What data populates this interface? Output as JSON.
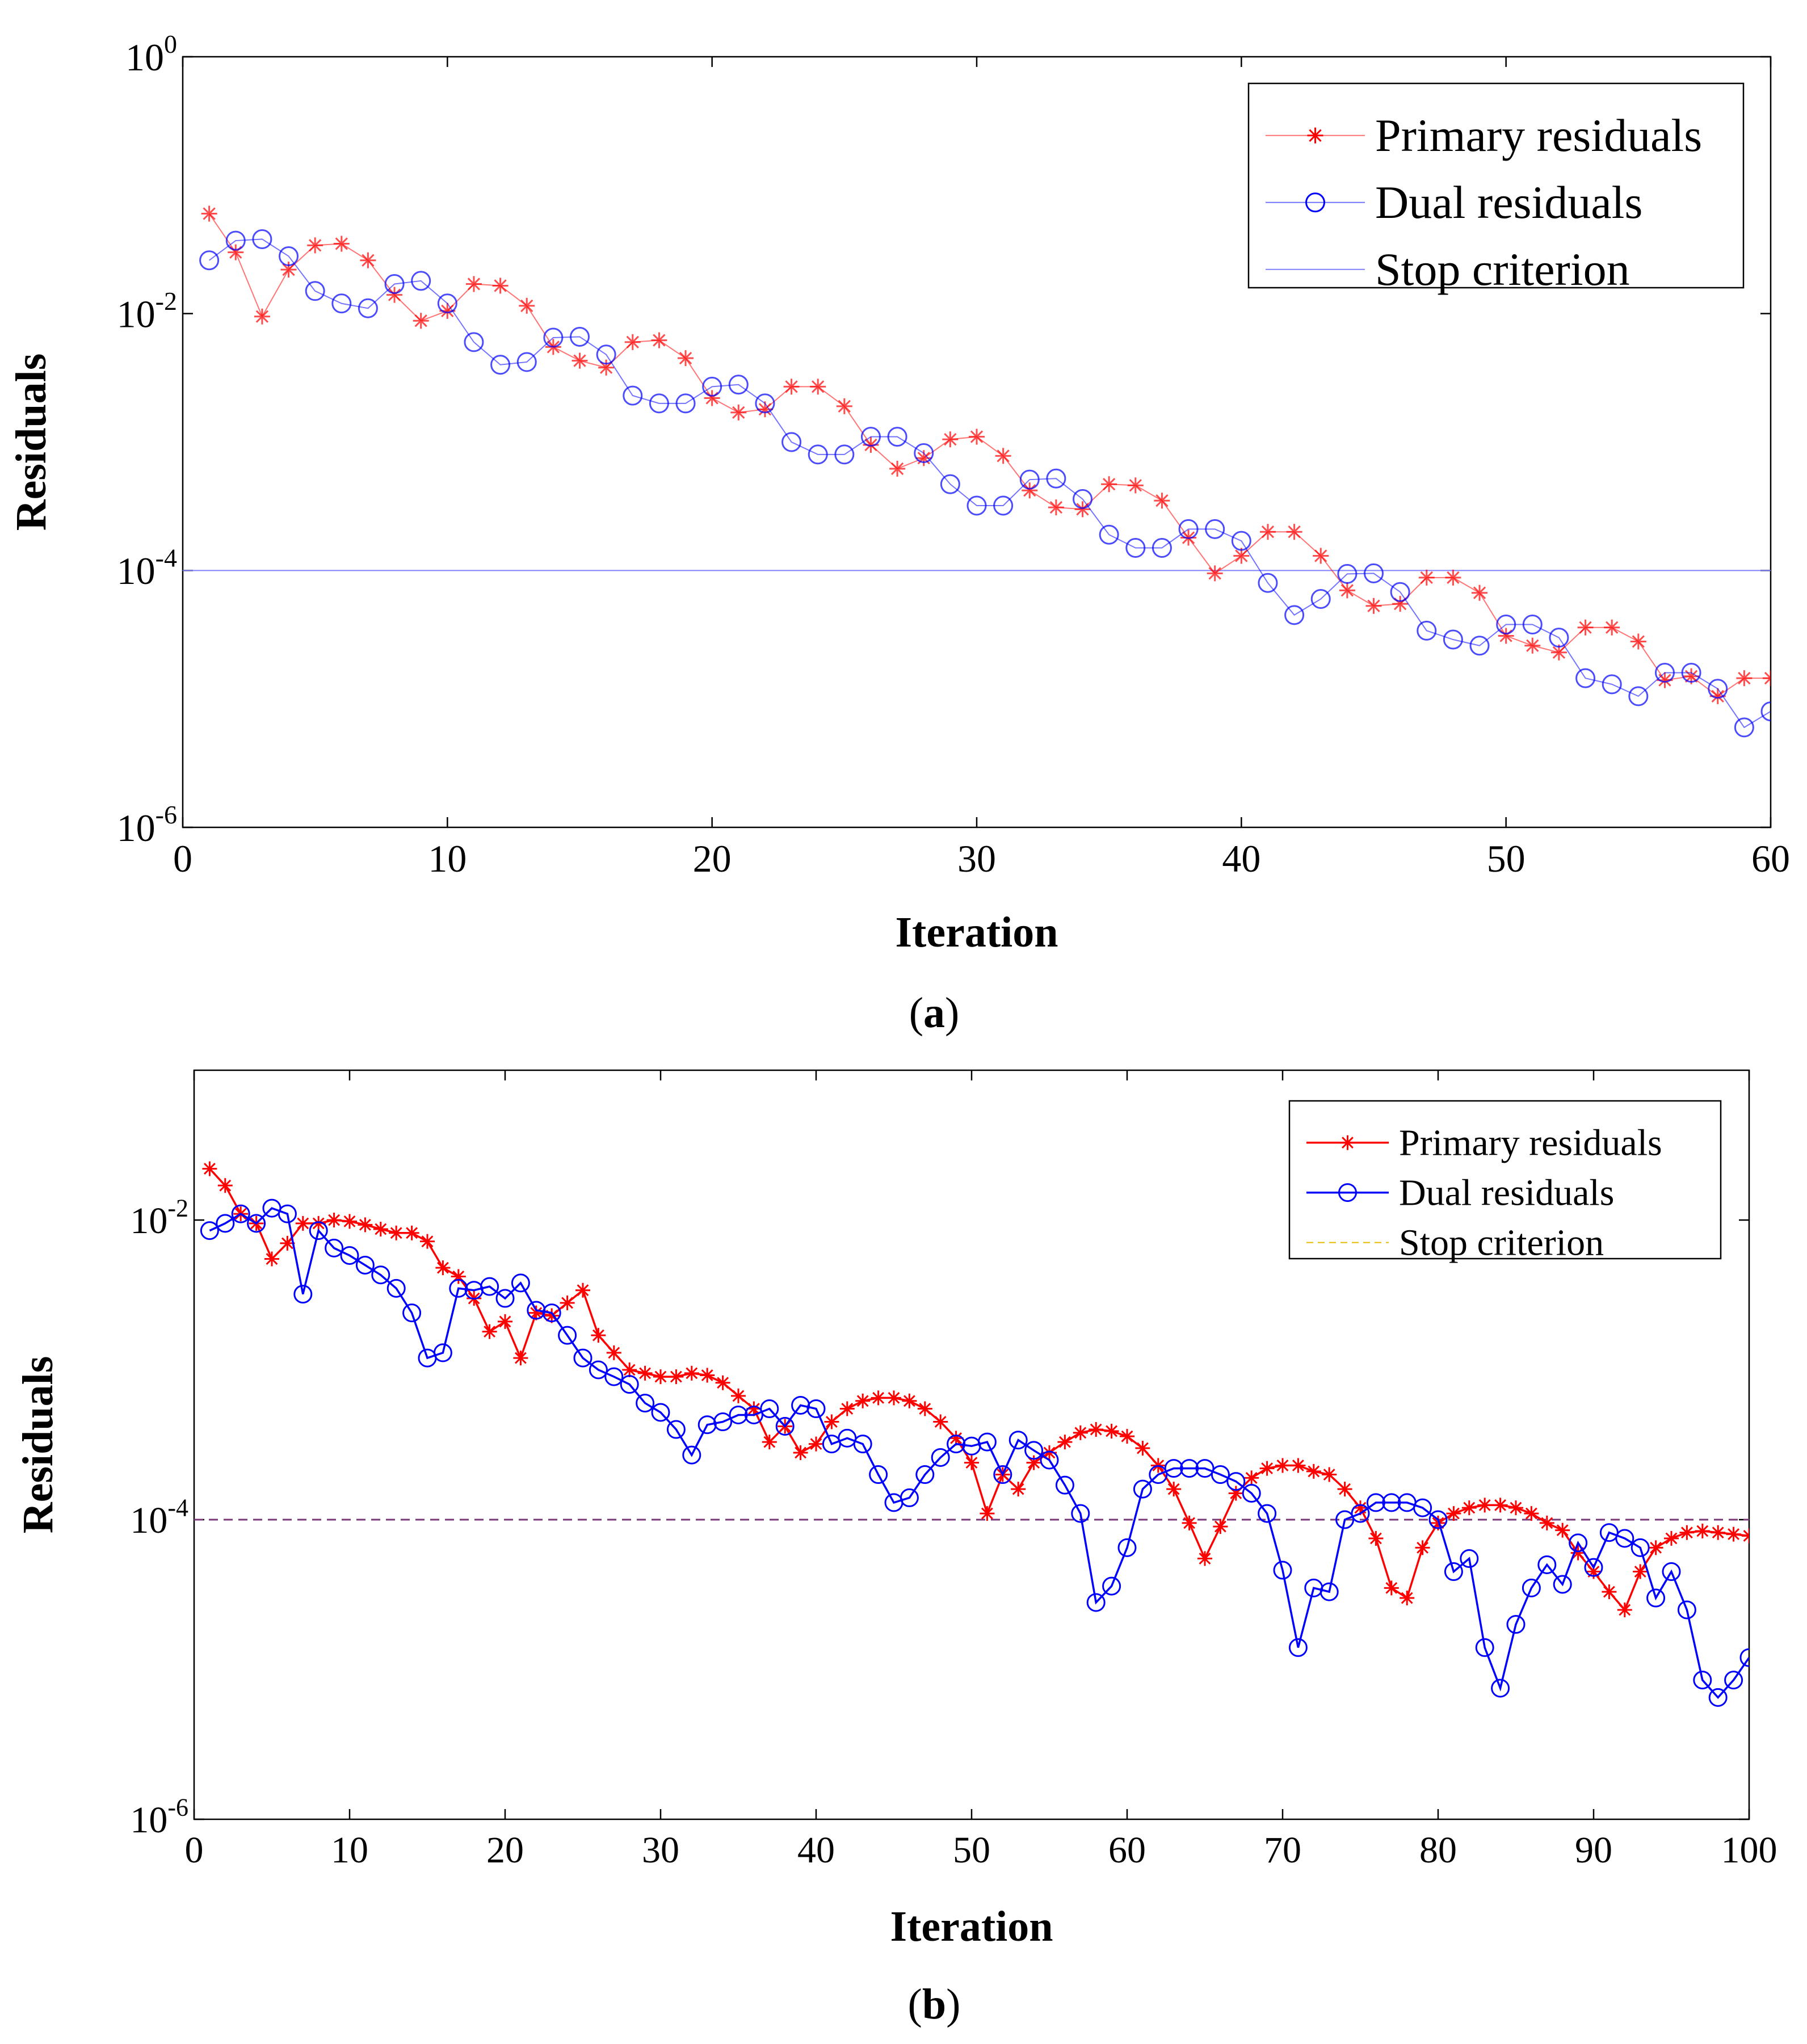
{
  "chart_data": [
    {
      "id": "a",
      "type": "line",
      "panel_label": "a",
      "xlabel": "Iteration",
      "ylabel": "Residuals",
      "xlim": [
        0,
        60
      ],
      "ylim": [
        1e-06,
        1
      ],
      "yscale": "log",
      "xticks": [
        "0",
        "10",
        "20",
        "30",
        "40",
        "50",
        "60"
      ],
      "yticks": [
        {
          "base": "10",
          "exp": "-6"
        },
        {
          "base": "10",
          "exp": "-4"
        },
        {
          "base": "10",
          "exp": "-2"
        },
        {
          "base": "10",
          "exp": "0"
        }
      ],
      "legend_position": "top-right",
      "stop_criterion": 0.0001,
      "series": [
        {
          "name": "Primary residuals",
          "color": "#ff0000",
          "marker": "star",
          "values": [
            0.06,
            0.03,
            0.0095,
            0.022,
            0.034,
            0.035,
            0.026,
            0.014,
            0.0088,
            0.0105,
            0.017,
            0.0165,
            0.0115,
            0.0055,
            0.0043,
            0.0038,
            0.006,
            0.0062,
            0.0045,
            0.0022,
            0.0017,
            0.0018,
            0.0027,
            0.0027,
            0.0019,
            0.00095,
            0.00062,
            0.00075,
            0.00105,
            0.0011,
            0.00078,
            0.00042,
            0.00031,
            0.0003,
            0.00047,
            0.00046,
            0.00035,
            0.00018,
            9.5e-05,
            0.00013,
            0.0002,
            0.0002,
            0.00013,
            7e-05,
            5.3e-05,
            5.5e-05,
            8.8e-05,
            8.8e-05,
            6.7e-05,
            3.1e-05,
            2.6e-05,
            2.3e-05,
            3.6e-05,
            3.6e-05,
            2.8e-05,
            1.4e-05,
            1.5e-05,
            1.05e-05,
            1.45e-05,
            1.45e-05
          ]
        },
        {
          "name": "Dual residuals",
          "color": "#0000ff",
          "marker": "circle",
          "values": [
            0.026,
            0.037,
            0.038,
            0.028,
            0.015,
            0.012,
            0.011,
            0.017,
            0.018,
            0.012,
            0.006,
            0.004,
            0.0042,
            0.0065,
            0.0066,
            0.0048,
            0.0023,
            0.002,
            0.002,
            0.0027,
            0.0028,
            0.002,
            0.001,
            0.0008,
            0.0008,
            0.0011,
            0.0011,
            0.00082,
            0.00047,
            0.00032,
            0.00032,
            0.00051,
            0.00052,
            0.00036,
            0.00019,
            0.00015,
            0.00015,
            0.00021,
            0.00021,
            0.00017,
            8e-05,
            4.5e-05,
            6e-05,
            9.4e-05,
            9.5e-05,
            6.8e-05,
            3.4e-05,
            2.9e-05,
            2.6e-05,
            3.8e-05,
            3.8e-05,
            3e-05,
            1.45e-05,
            1.3e-05,
            1.05e-05,
            1.6e-05,
            1.6e-05,
            1.2e-05,
            6e-06,
            8e-06
          ]
        },
        {
          "name": "Stop criterion",
          "color": "#8080ff",
          "marker": "none",
          "style": "solid"
        }
      ]
    },
    {
      "id": "b",
      "type": "line",
      "panel_label": "b",
      "xlabel": "Iteration",
      "ylabel": "Residuals",
      "xlim": [
        0,
        100
      ],
      "ylim": [
        1e-06,
        0.1
      ],
      "yscale": "log",
      "xticks": [
        "0",
        "10",
        "20",
        "30",
        "40",
        "50",
        "60",
        "70",
        "80",
        "90",
        "100"
      ],
      "yticks": [
        {
          "base": "10",
          "exp": "-6"
        },
        {
          "base": "10",
          "exp": "-4"
        },
        {
          "base": "10",
          "exp": "-2"
        }
      ],
      "legend_position": "top-right",
      "stop_criterion": 0.0001,
      "series": [
        {
          "name": "Primary residuals",
          "color": "#ff0000",
          "marker": "star",
          "values": [
            0.022,
            0.017,
            0.011,
            0.0095,
            0.0055,
            0.007,
            0.0095,
            0.0095,
            0.01,
            0.0098,
            0.0093,
            0.0087,
            0.0082,
            0.0082,
            0.0072,
            0.0048,
            0.0042,
            0.003,
            0.0018,
            0.0021,
            0.0012,
            0.0024,
            0.0023,
            0.0028,
            0.0034,
            0.0017,
            0.0013,
            0.001,
            0.00095,
            0.0009,
            0.0009,
            0.00095,
            0.00092,
            0.00082,
            0.00067,
            0.00055,
            0.00033,
            0.00042,
            0.00028,
            0.00032,
            0.00045,
            0.00055,
            0.00062,
            0.00065,
            0.00065,
            0.00062,
            0.00055,
            0.00045,
            0.00035,
            0.00024,
            0.00011,
            0.0002,
            0.00016,
            0.00024,
            0.00028,
            0.00033,
            0.00038,
            0.0004,
            0.00039,
            0.00036,
            0.0003,
            0.00023,
            0.00016,
            9.5e-05,
            5.5e-05,
            9e-05,
            0.00015,
            0.00019,
            0.00022,
            0.00023,
            0.00023,
            0.00021,
            0.0002,
            0.00016,
            0.00012,
            7.5e-05,
            3.5e-05,
            3e-05,
            6.5e-05,
            9.5e-05,
            0.00011,
            0.00012,
            0.000125,
            0.000125,
            0.00012,
            0.00011,
            9.5e-05,
            8.5e-05,
            6e-05,
            4.5e-05,
            3.3e-05,
            2.5e-05,
            4.5e-05,
            6.5e-05,
            7.5e-05,
            8.2e-05,
            8.4e-05,
            8.2e-05,
            8e-05,
            7.8e-05
          ]
        },
        {
          "name": "Dual residuals",
          "color": "#0000ff",
          "marker": "circle",
          "values": [
            0.0085,
            0.0095,
            0.011,
            0.0095,
            0.012,
            0.011,
            0.0032,
            0.0085,
            0.0065,
            0.0058,
            0.005,
            0.0043,
            0.0035,
            0.0024,
            0.0012,
            0.0013,
            0.0035,
            0.0034,
            0.0036,
            0.003,
            0.0038,
            0.0025,
            0.0024,
            0.0017,
            0.0012,
            0.001,
            0.0009,
            0.0008,
            0.0006,
            0.00052,
            0.0004,
            0.00027,
            0.00043,
            0.00045,
            0.0005,
            0.0005,
            0.00055,
            0.00042,
            0.00058,
            0.00055,
            0.00032,
            0.00035,
            0.00032,
            0.0002,
            0.00013,
            0.00014,
            0.0002,
            0.00026,
            0.00032,
            0.00031,
            0.00033,
            0.0002,
            0.00034,
            0.00029,
            0.00025,
            0.00017,
            0.00011,
            2.8e-05,
            3.6e-05,
            6.5e-05,
            0.00016,
            0.0002,
            0.00022,
            0.00022,
            0.00022,
            0.0002,
            0.00018,
            0.00015,
            0.00011,
            4.6e-05,
            1.4e-05,
            3.5e-05,
            3.3e-05,
            0.0001,
            0.00011,
            0.00013,
            0.00013,
            0.00013,
            0.00012,
            0.0001,
            4.5e-05,
            5.5e-05,
            1.4e-05,
            7.5e-06,
            2e-05,
            3.5e-05,
            5e-05,
            3.7e-05,
            7e-05,
            4.8e-05,
            8.2e-05,
            7.5e-05,
            6.5e-05,
            3e-05,
            4.5e-05,
            2.5e-05,
            8.5e-06,
            6.5e-06,
            8.5e-06,
            1.2e-05
          ]
        },
        {
          "name": "Stop criterion",
          "color": "#e6b800",
          "marker": "none",
          "style": "dashed"
        }
      ]
    }
  ]
}
